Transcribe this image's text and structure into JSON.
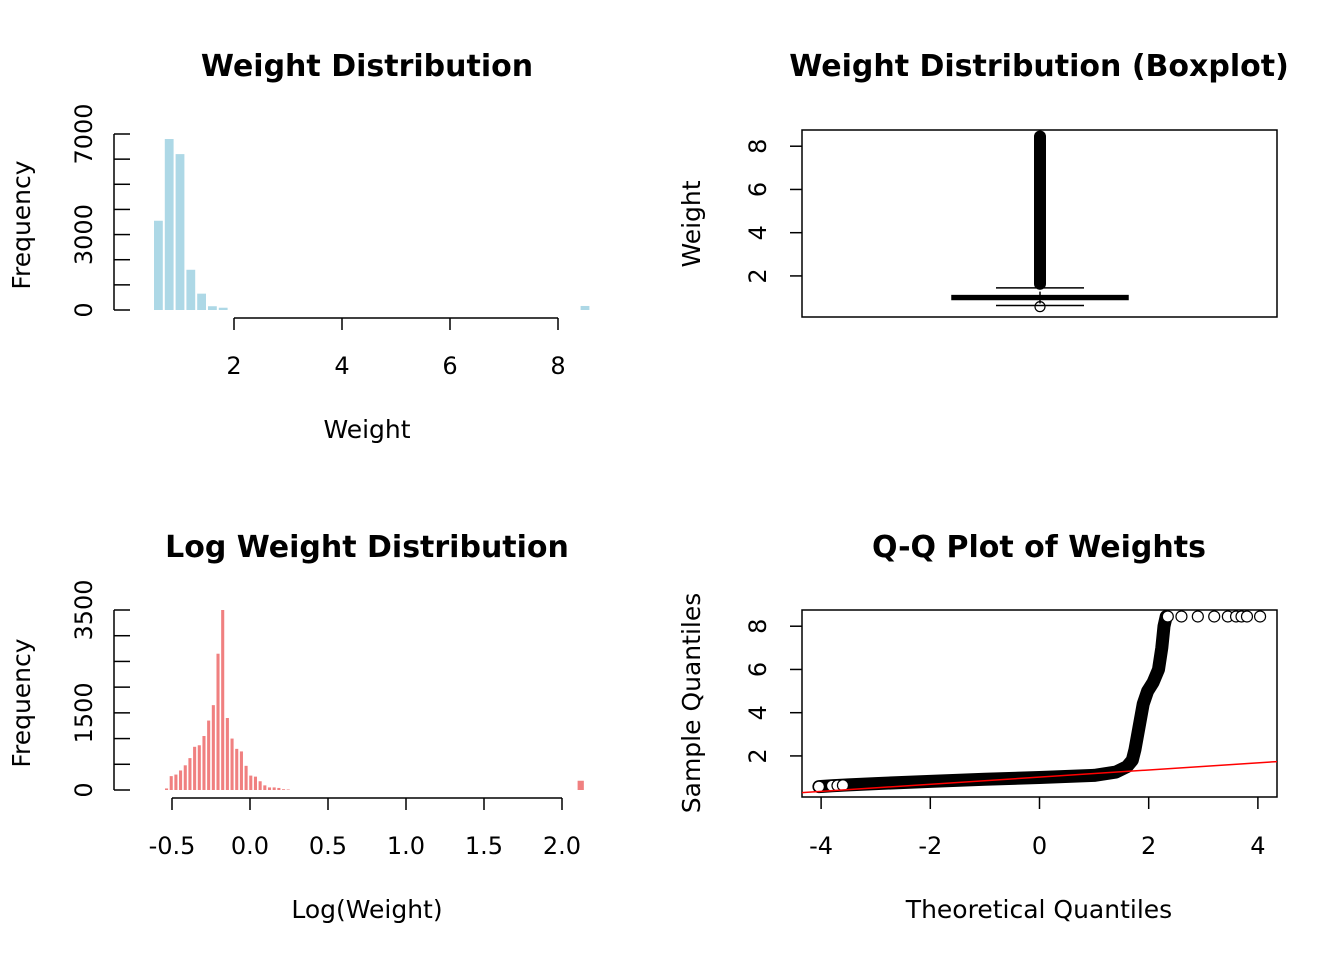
{
  "colors": {
    "hist1": "#add8e6",
    "hist2": "#f08080",
    "qqline": "#ff0000",
    "ink": "#000000"
  },
  "chart_data": [
    {
      "type": "bar",
      "title": "Weight Distribution",
      "xlabel": "Weight",
      "ylabel": "Frequency",
      "xticks": [
        2,
        4,
        6,
        8
      ],
      "yticks": [
        0,
        1000,
        2000,
        3000,
        4000,
        5000,
        6000,
        7000
      ],
      "ytick_labels": [
        "0",
        "",
        "",
        "3000",
        "",
        "",
        "",
        "7000"
      ],
      "bins": [
        {
          "x0": 0.5,
          "x1": 0.7,
          "count": 3550
        },
        {
          "x0": 0.7,
          "x1": 0.9,
          "count": 6800
        },
        {
          "x0": 0.9,
          "x1": 1.1,
          "count": 6200
        },
        {
          "x0": 1.1,
          "x1": 1.3,
          "count": 1600
        },
        {
          "x0": 1.3,
          "x1": 1.5,
          "count": 650
        },
        {
          "x0": 1.5,
          "x1": 1.7,
          "count": 150
        },
        {
          "x0": 1.7,
          "x1": 1.9,
          "count": 90
        },
        {
          "x0": 8.4,
          "x1": 8.6,
          "count": 160
        }
      ]
    },
    {
      "type": "boxplot",
      "title": "Weight Distribution (Boxplot)",
      "ylabel": "Weight",
      "yticks": [
        2,
        4,
        6,
        8
      ],
      "ylim": [
        0.1,
        8.75
      ],
      "stats": {
        "q1": 0.91,
        "median": 1.0,
        "q3": 1.09,
        "whisker_low": 0.63,
        "whisker_high": 1.45,
        "min": 0.58,
        "max": 8.45
      }
    },
    {
      "type": "bar",
      "title": "Log Weight Distribution",
      "xlabel": "Log(Weight)",
      "ylabel": "Frequency",
      "xticks": [
        -0.5,
        0.0,
        0.5,
        1.0,
        1.5,
        2.0
      ],
      "xtick_labels": [
        "-0.5",
        "0.0",
        "0.5",
        "1.0",
        "1.5",
        "2.0"
      ],
      "yticks": [
        0,
        500,
        1000,
        1500,
        2000,
        2500,
        3000,
        3500
      ],
      "ytick_labels": [
        "0",
        "",
        "",
        "1500",
        "",
        "",
        "",
        "3500"
      ],
      "bin_width": 0.03,
      "bin_start": -0.55,
      "counts": [
        30,
        270,
        300,
        380,
        480,
        620,
        840,
        870,
        1050,
        1350,
        1650,
        2650,
        3500,
        1400,
        1000,
        800,
        750,
        470,
        280,
        260,
        170,
        90,
        50,
        50,
        40,
        15,
        10
      ],
      "outlier_bin": {
        "x0": 2.1,
        "x1": 2.14,
        "count": 180
      }
    },
    {
      "type": "scatter",
      "title": "Q-Q Plot of Weights",
      "xlabel": "Theoretical Quantiles",
      "ylabel": "Sample Quantiles",
      "xticks": [
        -4,
        -2,
        0,
        2,
        4
      ],
      "yticks": [
        2,
        4,
        6,
        8
      ],
      "xlim": [
        -4.35,
        4.35
      ],
      "ylim": [
        0.1,
        8.75
      ],
      "curve": [
        [
          -4.04,
          0.58
        ],
        [
          -3.8,
          0.62
        ],
        [
          -3.5,
          0.66
        ],
        [
          -3.0,
          0.72
        ],
        [
          -2.0,
          0.82
        ],
        [
          -1.0,
          0.92
        ],
        [
          0.0,
          1.0
        ],
        [
          1.0,
          1.1
        ],
        [
          1.4,
          1.25
        ],
        [
          1.6,
          1.5
        ],
        [
          1.7,
          1.8
        ],
        [
          1.75,
          2.3
        ],
        [
          1.82,
          3.3
        ],
        [
          1.9,
          4.4
        ],
        [
          1.98,
          5.0
        ],
        [
          2.08,
          5.4
        ],
        [
          2.18,
          6.0
        ],
        [
          2.24,
          7.0
        ],
        [
          2.28,
          8.0
        ],
        [
          2.32,
          8.45
        ]
      ],
      "tail_points": [
        [
          2.35,
          8.45
        ],
        [
          2.6,
          8.45
        ],
        [
          2.9,
          8.45
        ],
        [
          3.2,
          8.45
        ],
        [
          3.45,
          8.45
        ],
        [
          3.6,
          8.45
        ],
        [
          3.7,
          8.45
        ],
        [
          3.8,
          8.45
        ],
        [
          4.04,
          8.45
        ]
      ],
      "low_points": [
        [
          -4.04,
          0.58
        ],
        [
          -3.8,
          0.62
        ],
        [
          -3.7,
          0.63
        ],
        [
          -3.6,
          0.64
        ]
      ],
      "reference_line": {
        "intercept": 1.02,
        "slope": 0.165
      }
    }
  ]
}
